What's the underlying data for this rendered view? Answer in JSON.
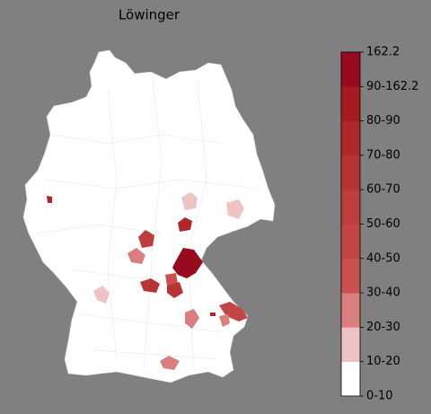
{
  "title": "Löwinger",
  "colorbar": {
    "labels": [
      "0-10",
      "10-20",
      "20-30",
      "30-40",
      "40-50",
      "50-60",
      "60-70",
      "70-80",
      "80-90",
      "90-162.2",
      "162.2"
    ],
    "colors": [
      "#ffffff",
      "#efc3c3",
      "#da7f7f",
      "#cb5050",
      "#c44545",
      "#c03d3d",
      "#b83333",
      "#af2727",
      "#a51b1f",
      "#980a1e"
    ]
  }
}
